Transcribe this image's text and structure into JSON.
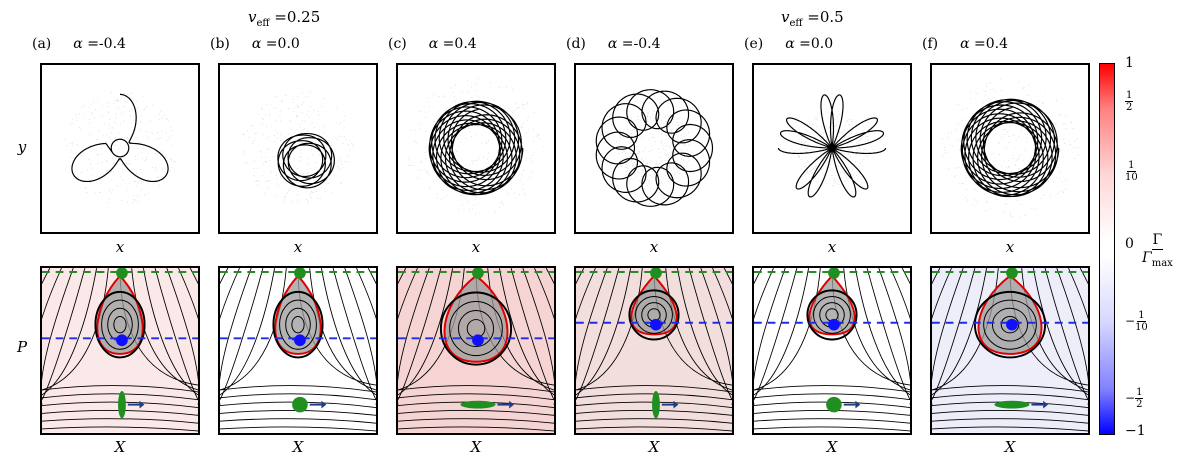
{
  "groups": [
    {
      "label_var": "v",
      "label_sub": "eff",
      "label_value": " =0.25"
    },
    {
      "label_var": "v",
      "label_sub": "eff",
      "label_value": " =0.5"
    }
  ],
  "panels": [
    {
      "letter": "(a)",
      "alpha_sym": "α",
      "alpha_value": " =-0.4",
      "loops": 3,
      "kind": "inner"
    },
    {
      "letter": "(b)",
      "alpha_sym": "α",
      "alpha_value": " =0.0",
      "loops": 9,
      "kind": "spiral"
    },
    {
      "letter": "(c)",
      "alpha_sym": "α",
      "alpha_value": " =0.4",
      "loops": 14,
      "kind": "ring"
    },
    {
      "letter": "(d)",
      "alpha_sym": "α",
      "alpha_value": " =-0.4",
      "loops": 15,
      "kind": "flower"
    },
    {
      "letter": "(e)",
      "alpha_sym": "α",
      "alpha_value": " =0.0",
      "loops": 11,
      "kind": "rosette"
    },
    {
      "letter": "(f)",
      "alpha_sym": "α",
      "alpha_value": " =0.4",
      "loops": 16,
      "kind": "ring2"
    }
  ],
  "axes": {
    "top_ylabel": "y",
    "top_xlabel": "x",
    "bottom_ylabel": "P",
    "bottom_xlabel": "X"
  },
  "colorbar": {
    "ticks": [
      {
        "kind": "plain",
        "text": "1"
      },
      {
        "kind": "frac",
        "sign": "",
        "num": "1",
        "den": "2"
      },
      {
        "kind": "frac",
        "sign": "",
        "num": "1",
        "den": "10"
      },
      {
        "kind": "plain",
        "text": "0"
      },
      {
        "kind": "frac",
        "sign": "−",
        "num": "1",
        "den": "10"
      },
      {
        "kind": "frac",
        "sign": "−",
        "num": "1",
        "den": "2"
      },
      {
        "kind": "plain",
        "text": "−1"
      }
    ],
    "label_num": "Γ",
    "label_den_var": "Γ",
    "label_den_sub": "max",
    "colors": {
      "top": "#ff0000",
      "mid": "#ffffff",
      "bottom": "#0000ff"
    }
  },
  "colors": {
    "trajectory": "#000000",
    "separatrix_red": "#e00000",
    "dashed_green": "#2a8a2a",
    "dashed_blue": "#1f2ee6",
    "dot_green": "#1f8f1f",
    "dot_blue": "#1010ff",
    "arrow_navy": "#1f3c88",
    "stream": "#000000"
  }
}
